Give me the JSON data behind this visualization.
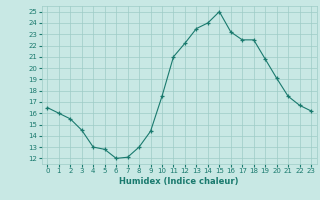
{
  "x": [
    0,
    1,
    2,
    3,
    4,
    5,
    6,
    7,
    8,
    9,
    10,
    11,
    12,
    13,
    14,
    15,
    16,
    17,
    18,
    19,
    20,
    21,
    22,
    23
  ],
  "y": [
    16.5,
    16.0,
    15.5,
    14.5,
    13.0,
    12.8,
    12.0,
    12.1,
    13.0,
    14.4,
    17.5,
    21.0,
    22.2,
    23.5,
    24.0,
    25.0,
    23.2,
    22.5,
    22.5,
    20.8,
    19.1,
    17.5,
    16.7,
    16.2
  ],
  "xlabel": "Humidex (Indice chaleur)",
  "xlim": [
    -0.5,
    23.5
  ],
  "ylim": [
    11.5,
    25.5
  ],
  "yticks": [
    12,
    13,
    14,
    15,
    16,
    17,
    18,
    19,
    20,
    21,
    22,
    23,
    24,
    25
  ],
  "xticks": [
    0,
    1,
    2,
    3,
    4,
    5,
    6,
    7,
    8,
    9,
    10,
    11,
    12,
    13,
    14,
    15,
    16,
    17,
    18,
    19,
    20,
    21,
    22,
    23
  ],
  "line_color": "#1a7a6e",
  "bg_color": "#c8e8e4",
  "grid_color": "#9eccc6",
  "tick_color": "#1a7a6e",
  "xlabel_color": "#1a7a6e"
}
